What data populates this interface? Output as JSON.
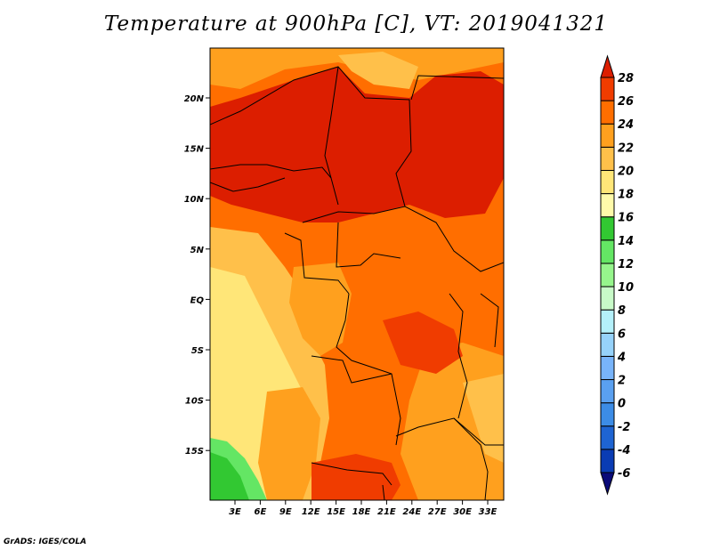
{
  "title": "Temperature at 900hPa [C], VT: 2019041321",
  "credit": "GrADS: IGES/COLA",
  "lon_ticks": [
    "3E",
    "6E",
    "9E",
    "12E",
    "15E",
    "18E",
    "21E",
    "24E",
    "27E",
    "30E",
    "33E"
  ],
  "lat_ticks": [
    "20N",
    "15N",
    "10N",
    "5N",
    "EQ",
    "5S",
    "10S",
    "15S"
  ],
  "colorbar": {
    "levels": [
      "-6",
      "-4",
      "-2",
      "0",
      "2",
      "4",
      "6",
      "8",
      "10",
      "12",
      "14",
      "16",
      "18",
      "20",
      "22",
      "24",
      "26",
      "28"
    ],
    "colors": [
      "#0a0a78",
      "#0a3cb4",
      "#1e64d2",
      "#3c8ce6",
      "#5aa0f0",
      "#78b4fa",
      "#96d2fa",
      "#b4f0fa",
      "#c8fac8",
      "#96f58c",
      "#64e664",
      "#32c832",
      "#fffaaa",
      "#ffe678",
      "#ffc04a",
      "#ffa01e",
      "#ff6e00",
      "#f03c00",
      "#dc1e00"
    ]
  },
  "palette": {
    "yellow_light": "#ffe678",
    "yellow_orange": "#ffc04a",
    "orange": "#ffa01e",
    "dark_orange": "#ff6e00",
    "red_orange": "#f03c00",
    "red": "#dc1e00",
    "green_light": "#64e664",
    "green": "#32c832"
  }
}
